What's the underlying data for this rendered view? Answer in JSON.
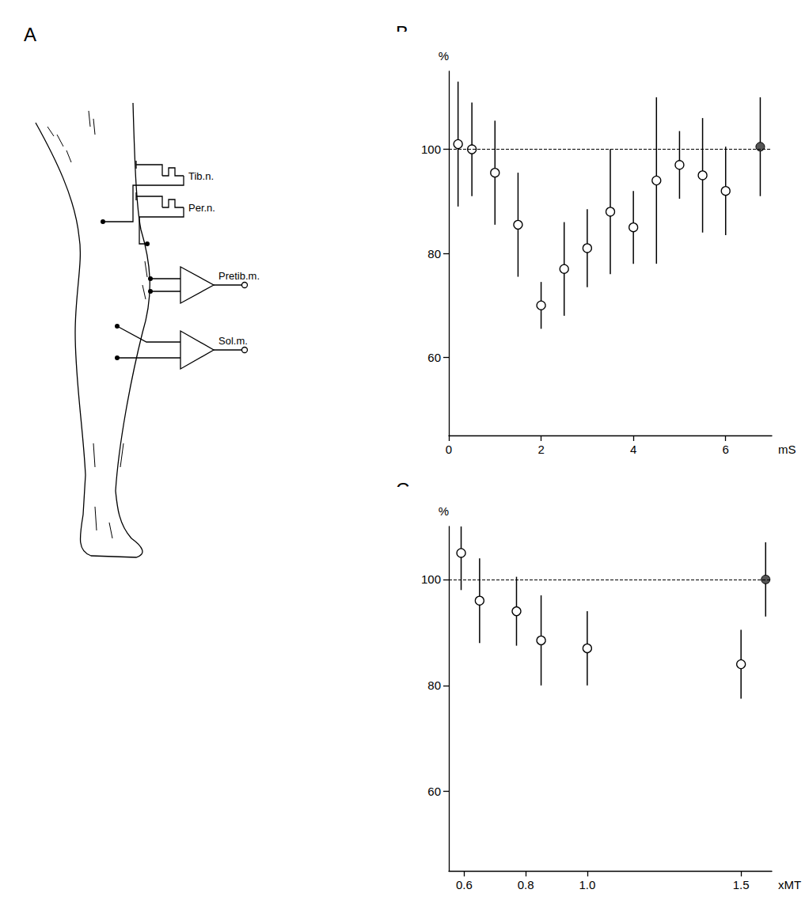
{
  "diagram": {
    "panel": "A",
    "stimulators": [
      "Tib.n.",
      "Per.n."
    ],
    "amplifiers": [
      "Pretib.m.",
      "Sol.m."
    ]
  },
  "chart_data": [
    {
      "type": "scatter",
      "panel": "B",
      "ylabel": "%",
      "xlabel": "mS",
      "xlim": [
        0,
        7
      ],
      "xticks": [
        0,
        2,
        4,
        6
      ],
      "ylim": [
        45,
        115
      ],
      "yticks": [
        60,
        80,
        100
      ],
      "hline": 100,
      "grid": false,
      "series": [
        {
          "x": [
            0.2,
            0.5,
            1.0,
            1.5,
            2.0,
            2.5,
            3.0,
            3.5,
            4.0,
            4.5,
            5.0,
            5.5,
            6.0
          ],
          "values": [
            101,
            100,
            95.5,
            85.5,
            70,
            77,
            81,
            88,
            85,
            94,
            97,
            95,
            92
          ],
          "errors": [
            12,
            9,
            10,
            10,
            4.5,
            9,
            7.5,
            12,
            7,
            16,
            6.5,
            11,
            8.5
          ],
          "marker": "open",
          "color": "#000000"
        },
        {
          "x": [
            6.75
          ],
          "values": [
            100.5
          ],
          "errors": [
            9.5
          ],
          "marker": "filled",
          "color": "#555555"
        }
      ]
    },
    {
      "type": "scatter",
      "panel": "C",
      "ylabel": "%",
      "xlabel": "xMT",
      "xlim": [
        0.55,
        1.6
      ],
      "xticks": [
        0.6,
        0.8,
        {
          "value": 1,
          "label": "1.0"
        },
        1.5
      ],
      "ylim": [
        45,
        110
      ],
      "yticks": [
        60,
        80,
        100
      ],
      "hline": 100,
      "grid": false,
      "series": [
        {
          "x": [
            0.59,
            0.65,
            0.77,
            0.85,
            1.0,
            1.5
          ],
          "values": [
            105,
            96,
            94,
            88.5,
            87,
            84
          ],
          "errors": [
            7,
            8,
            6.5,
            8.5,
            7,
            6.5
          ],
          "marker": "open",
          "color": "#000000"
        },
        {
          "x": [
            1.58
          ],
          "values": [
            100
          ],
          "errors": [
            7
          ],
          "marker": "filled",
          "color": "#555555"
        }
      ]
    }
  ]
}
